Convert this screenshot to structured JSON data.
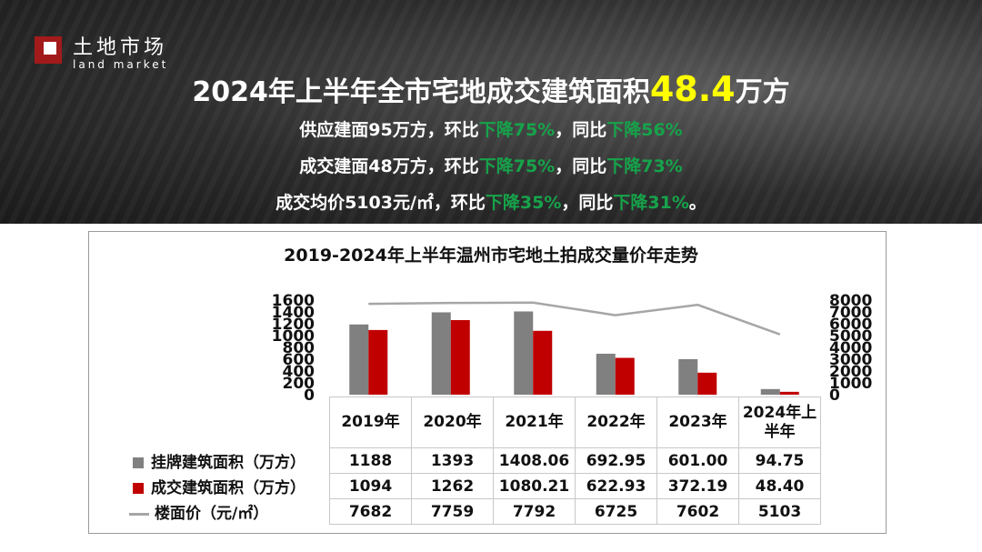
{
  "header": {
    "logo_cn": "土地市场",
    "logo_en": "land market",
    "headline_prefix": "2024年上半年全市宅地成交建筑面积",
    "headline_value": "48.4",
    "headline_suffix": "万方",
    "lines": [
      {
        "p1": "供应建面95万方，环比",
        "g1": "下降75%",
        "p2": "，同比",
        "g2": "下降56%",
        "p3": ""
      },
      {
        "p1": "成交建面48万方，环比",
        "g1": "下降75%",
        "p2": "，同比",
        "g2": "下降73%",
        "p3": ""
      },
      {
        "p1": "成交均价5103元/㎡，环比",
        "g1": "下降35%",
        "p2": "，同比",
        "g2": "下降31%",
        "p3": "。"
      }
    ]
  },
  "colors": {
    "series_listed": "#808080",
    "series_traded": "#c00000",
    "series_price": "#a6a6a6",
    "highlight": "#ffff00",
    "decline_green": "#16a34a"
  },
  "chart_data": {
    "type": "bar",
    "title": "2019-2024年上半年温州市宅地土拍成交量价年走势",
    "categories": [
      "2019年",
      "2020年",
      "2021年",
      "2022年",
      "2023年",
      "2024年上半年"
    ],
    "category_display": [
      [
        "2019年"
      ],
      [
        "2020年"
      ],
      [
        "2021年"
      ],
      [
        "2022年"
      ],
      [
        "2023年"
      ],
      [
        "2024年上",
        "半年"
      ]
    ],
    "left_axis": {
      "ylim": [
        0,
        1600
      ],
      "ticks": [
        "0",
        "200",
        "400",
        "600",
        "800",
        "1000",
        "1200",
        "1400",
        "1600"
      ]
    },
    "right_axis": {
      "ylim": [
        0,
        8000
      ],
      "ticks": [
        "0",
        "1000",
        "2000",
        "3000",
        "4000",
        "5000",
        "6000",
        "7000",
        "8000"
      ]
    },
    "series": [
      {
        "name": "挂牌建筑面积（万方）",
        "type": "bar",
        "axis": "left",
        "values": [
          1188,
          1393,
          1408.06,
          692.95,
          601.0,
          94.75
        ],
        "labels": [
          "1188",
          "1393",
          "1408.06",
          "692.95",
          "601.00",
          "94.75"
        ]
      },
      {
        "name": "成交建筑面积（万方）",
        "type": "bar",
        "axis": "left",
        "values": [
          1094,
          1262,
          1080.21,
          622.93,
          372.19,
          48.4
        ],
        "labels": [
          "1094",
          "1262",
          "1080.21",
          "622.93",
          "372.19",
          "48.40"
        ]
      },
      {
        "name": "楼面价（元/㎡）",
        "type": "line",
        "axis": "right",
        "values": [
          7682,
          7759,
          7792,
          6725,
          7602,
          5103
        ],
        "labels": [
          "7682",
          "7759",
          "7792",
          "6725",
          "7602",
          "5103"
        ]
      }
    ],
    "legend": "data-table"
  }
}
